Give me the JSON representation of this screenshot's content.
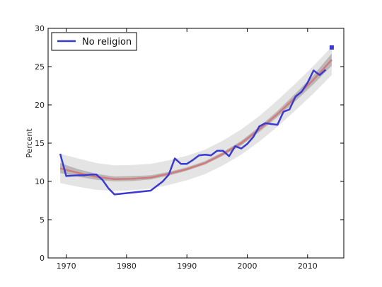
{
  "chart_data": {
    "type": "line",
    "title": "",
    "xlabel": "",
    "ylabel": "Percent",
    "xlim": [
      1967,
      2016
    ],
    "ylim": [
      0,
      30
    ],
    "x_ticks": [
      1970,
      1980,
      1990,
      2000,
      2010
    ],
    "y_ticks": [
      0,
      5,
      10,
      15,
      20,
      25,
      30
    ],
    "grid": false,
    "legend_position": "top-left",
    "series": [
      {
        "name": "No religion",
        "color": "#3a3ad0",
        "x": [
          1969,
          1970,
          1972,
          1973,
          1974,
          1975,
          1976,
          1977,
          1978,
          1984,
          1986,
          1987,
          1988,
          1989,
          1990,
          1991,
          1992,
          1993,
          1994,
          1995,
          1996,
          1997,
          1998,
          1999,
          2000,
          2001,
          2002,
          2003,
          2004,
          2005,
          2006,
          2007,
          2008,
          2009,
          2010,
          2011,
          2012,
          2013
        ],
        "y": [
          13.6,
          10.7,
          10.8,
          10.8,
          10.9,
          10.9,
          10.2,
          9.1,
          8.3,
          8.8,
          10.0,
          10.9,
          13.0,
          12.3,
          12.3,
          12.8,
          13.4,
          13.5,
          13.4,
          14.0,
          14.0,
          13.3,
          14.6,
          14.3,
          14.9,
          15.8,
          17.2,
          17.6,
          17.5,
          17.4,
          19.1,
          19.4,
          21.1,
          21.7,
          22.9,
          24.5,
          23.9,
          24.6
        ]
      }
    ],
    "extra_point": {
      "x": 2014,
      "y": 27.5,
      "color": "#3a3ad0",
      "shape": "square"
    },
    "fit_curve": {
      "color": "#d47a7a",
      "x": [
        1969,
        1972,
        1975,
        1978,
        1981,
        1984,
        1987,
        1990,
        1993,
        1996,
        1999,
        2002,
        2005,
        2008,
        2011,
        2014
      ],
      "y": [
        11.7,
        11.1,
        10.6,
        10.3,
        10.35,
        10.5,
        11.0,
        11.6,
        12.4,
        13.6,
        15.0,
        16.8,
        18.8,
        21.0,
        23.3,
        25.9
      ]
    },
    "inner_band": {
      "color": "#b8b8b8",
      "lower": [
        11.1,
        10.6,
        10.2,
        10.0,
        10.05,
        10.25,
        10.75,
        11.4,
        12.2,
        13.35,
        14.7,
        16.45,
        18.4,
        20.5,
        22.7,
        25.1
      ],
      "upper": [
        12.4,
        11.6,
        11.0,
        10.65,
        10.7,
        10.8,
        11.25,
        11.85,
        12.65,
        13.85,
        15.3,
        17.15,
        19.2,
        21.5,
        23.9,
        26.7
      ]
    },
    "outer_band": {
      "color": "#e4e4e4",
      "lower": [
        9.8,
        9.3,
        8.9,
        8.75,
        8.85,
        9.05,
        9.55,
        10.15,
        10.95,
        12.1,
        13.5,
        15.2,
        17.15,
        19.3,
        21.5,
        23.9
      ],
      "upper": [
        13.6,
        13.0,
        12.4,
        12.1,
        12.15,
        12.3,
        12.75,
        13.35,
        14.15,
        15.35,
        16.8,
        18.55,
        20.6,
        22.8,
        25.1,
        27.6
      ]
    }
  }
}
